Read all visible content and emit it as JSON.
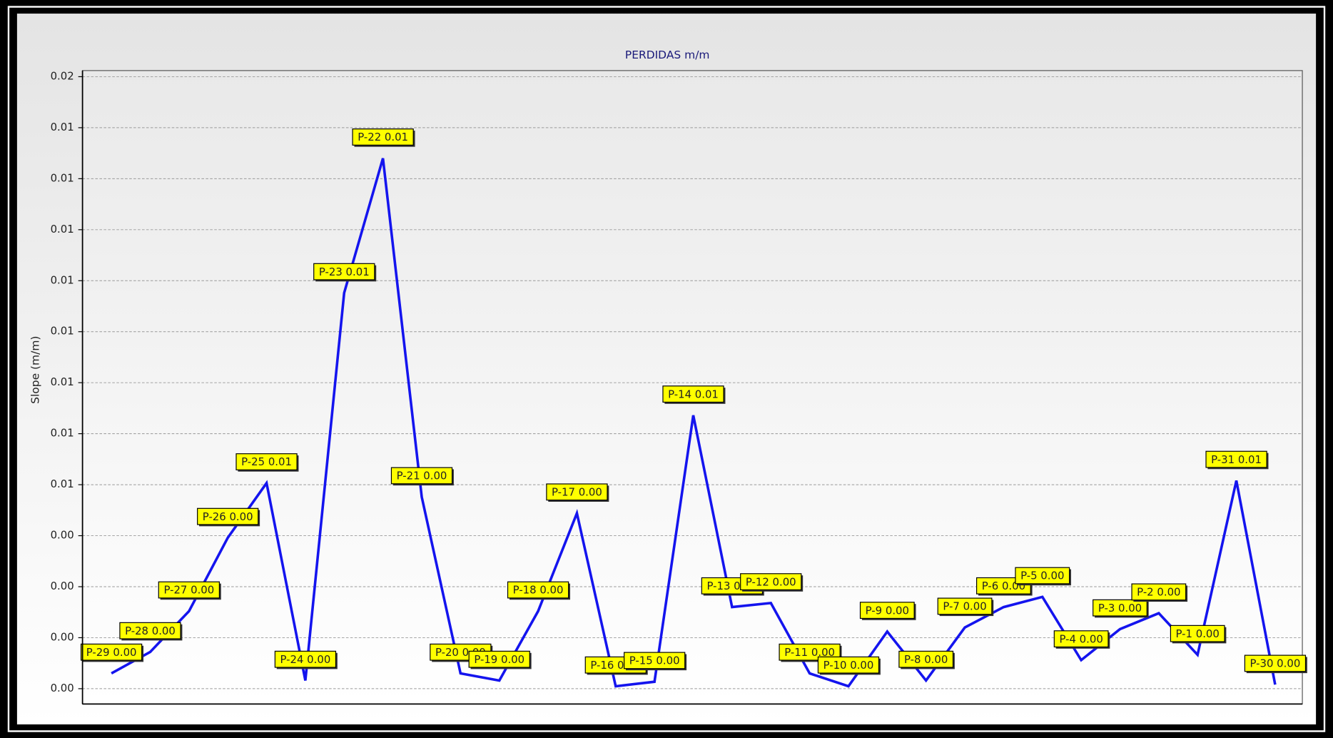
{
  "chart_data": {
    "type": "line",
    "title": "PERDIDAS  m/m",
    "y_label": "Slope (m/m)",
    "color": "#1414ee",
    "grid": true,
    "ylim": [
      -0.000375,
      0.01515
    ],
    "yticks": [
      {
        "value": 0,
        "label": "0.00"
      },
      {
        "value": 0.00125,
        "label": "0.00"
      },
      {
        "value": 0.0025,
        "label": "0.00"
      },
      {
        "value": 0.00375,
        "label": "0.00"
      },
      {
        "value": 0.005,
        "label": "0.01"
      },
      {
        "value": 0.00625,
        "label": "0.01"
      },
      {
        "value": 0.0075,
        "label": "0.01"
      },
      {
        "value": 0.00875,
        "label": "0.01"
      },
      {
        "value": 0.01,
        "label": "0.01"
      },
      {
        "value": 0.01125,
        "label": "0.01"
      },
      {
        "value": 0.0125,
        "label": "0.01"
      },
      {
        "value": 0.01375,
        "label": "0.01"
      },
      {
        "value": 0.015,
        "label": "0.02"
      }
    ],
    "values": [
      0.000375,
      0.0009,
      0.0019,
      0.0037,
      0.00504,
      0.0002,
      0.0097,
      0.013,
      0.0047,
      0.000375,
      0.0002,
      0.0019,
      0.0043,
      6e-05,
      0.00017,
      0.0067,
      0.002,
      0.0021,
      0.000375,
      6e-05,
      0.0014,
      0.0002,
      0.0015,
      0.002,
      0.00225,
      0.0007,
      0.00146,
      0.00185,
      0.00083,
      0.0051,
      0.0001
    ],
    "value_labels": [
      "P-29 0.00",
      "P-28 0.00",
      "P-27 0.00",
      "P-26 0.00",
      "P-25 0.01",
      "P-24 0.00",
      "P-23 0.01",
      "P-22 0.01",
      "P-21 0.00",
      "P-20 0.00",
      "P-19 0.00",
      "P-18 0.00",
      "P-17 0.00",
      "P-16 0.00",
      "P-15 0.00",
      "P-14 0.01",
      "P-13 0.00",
      "P-12 0.00",
      "P-11 0.00",
      "P-10 0.00",
      "P-9 0.00",
      "P-8 0.00",
      "P-7 0.00",
      "P-6 0.00",
      "P-5 0.00",
      "P-4 0.00",
      "P-3 0.00",
      "P-2 0.00",
      "P-1 0.00",
      "P-31 0.01",
      "P-30 0.00"
    ]
  }
}
